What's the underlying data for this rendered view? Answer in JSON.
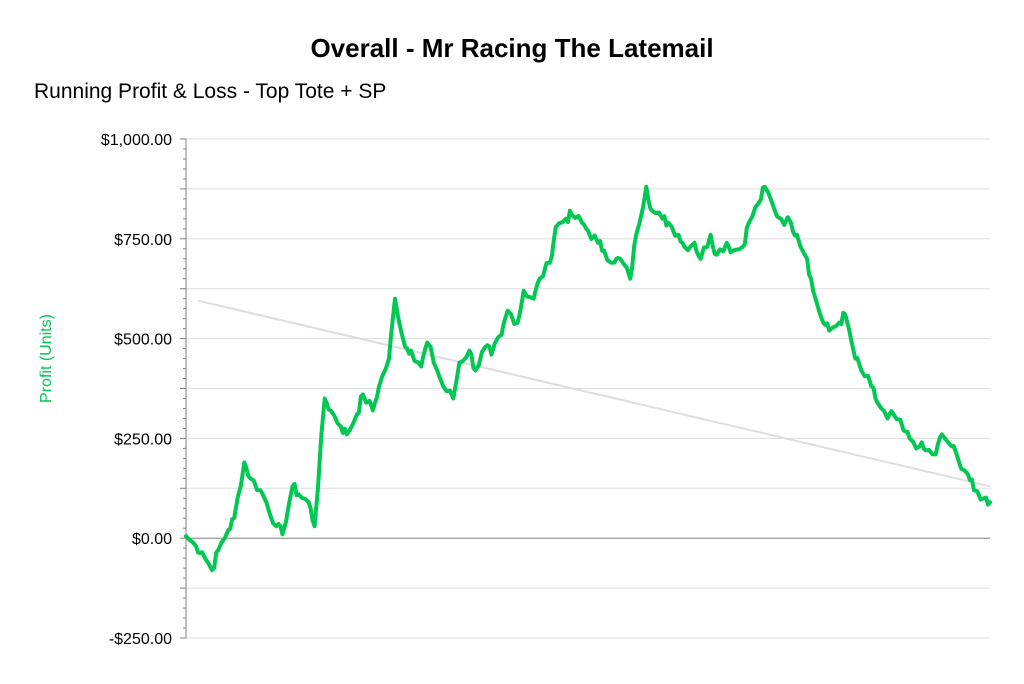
{
  "chart_data": {
    "type": "line",
    "title": "Overall - Mr Racing The Latemail",
    "subtitle": "Running Profit & Loss - Top Tote + SP",
    "ylabel": "Profit (Units)",
    "xlabel": "",
    "ylim": [
      -250,
      1000
    ],
    "y_ticks": [
      1000,
      750,
      500,
      250,
      0,
      -250
    ],
    "y_tick_labels": [
      "$1,000.00",
      "$750.00",
      "$500.00",
      "$250.00",
      "$0.00",
      "-$250.00"
    ],
    "grid": true,
    "colors": {
      "series": "#00c853",
      "trend": "#dddddd",
      "ylabel": "#00c853",
      "grid": "#dddddd",
      "zero_line": "#808080"
    },
    "x": [
      0,
      1.25,
      2,
      3.25,
      4,
      5.25,
      6,
      7.25,
      8,
      9.25,
      10,
      11.25,
      12,
      13.25,
      14,
      15.25,
      16,
      17.25,
      18,
      19.25,
      20,
      21.25,
      22,
      23.25,
      24,
      25.25,
      26,
      27.25,
      28,
      29.25,
      30,
      31.25,
      32,
      33.25,
      34,
      35.25,
      36,
      37.25,
      38,
      39.25,
      40,
      41.25,
      42,
      43.25,
      44,
      45.25,
      46,
      47.25,
      48,
      49.25,
      50,
      51.25,
      52,
      53.25,
      54,
      55.25,
      56,
      57.25,
      58,
      59.25,
      60,
      61.25,
      62,
      63.25,
      64,
      65.25,
      66,
      67.25,
      68,
      69.25,
      70,
      71.25,
      72,
      73.25,
      74,
      75.25,
      76,
      77.25,
      78,
      79.25,
      80,
      81.25,
      82,
      83.25,
      84,
      85.25,
      86,
      87.25,
      88,
      89.25,
      90,
      91.25,
      92,
      93.25,
      94,
      95.25,
      96,
      97.25,
      98,
      99.25,
      100
    ],
    "series": [
      {
        "values": [
          5,
          -20,
          -35,
          -80,
          -30,
          20,
          50,
          190,
          150,
          120,
          90,
          30,
          10,
          130,
          110,
          90,
          30,
          350,
          320,
          280,
          260,
          310,
          360,
          320,
          380,
          450,
          600,
          480,
          470,
          430,
          490,
          420,
          380,
          350,
          440,
          470,
          420,
          480,
          460,
          510,
          570,
          540,
          620,
          600,
          650,
          690,
          780,
          800,
          810,
          790,
          770,
          740,
          720,
          690,
          700,
          650,
          760,
          880,
          820,
          800,
          790,
          760,
          730,
          740,
          700,
          760,
          710,
          740,
          720,
          730,
          790,
          840,
          880,
          820,
          800,
          790,
          760,
          700,
          620,
          540,
          520,
          540,
          560,
          450,
          420,
          380,
          340,
          300,
          310,
          270,
          250,
          230,
          220,
          210,
          260,
          230,
          200,
          160,
          120,
          100,
          90
        ]
      }
    ],
    "trend": {
      "start": 595,
      "end": 130
    }
  }
}
